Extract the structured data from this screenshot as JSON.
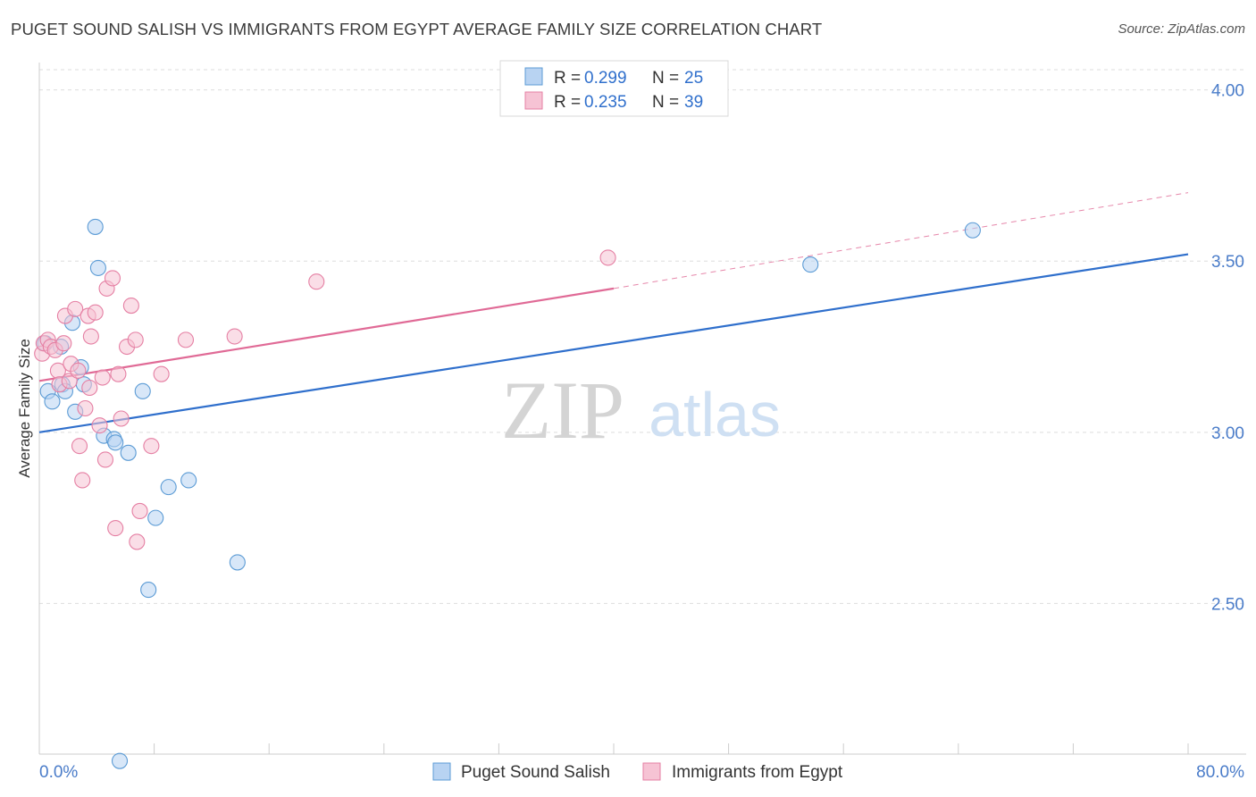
{
  "title": "PUGET SOUND SALISH VS IMMIGRANTS FROM EGYPT AVERAGE FAMILY SIZE CORRELATION CHART",
  "source": "Source: ZipAtlas.com",
  "watermark": {
    "zip": "ZIP",
    "atlas": "atlas"
  },
  "colors": {
    "blue": "#5b9bd5",
    "blue_fill": "#b8d3f2",
    "blue_line": "#2f6fcc",
    "pink": "#e57fa3",
    "pink_fill": "#f6c3d4",
    "pink_line": "#e06a96",
    "axis_text": "#4a7cc9",
    "grid": "#dddddd"
  },
  "chart_data": {
    "type": "scatter",
    "xlabel": "",
    "ylabel": "Average Family Size",
    "xlim": [
      0,
      80
    ],
    "ylim": [
      2.06,
      4.08
    ],
    "x_tick_labels": [
      "0.0%",
      "80.0%"
    ],
    "y_ticks": [
      2.5,
      3.0,
      3.5,
      4.0
    ],
    "y_tick_labels": [
      "2.50",
      "3.00",
      "3.50",
      "4.00"
    ],
    "legend_stats": [
      {
        "r_label": "R = ",
        "r": "0.299",
        "n_label": "N = ",
        "n": "25"
      },
      {
        "r_label": "R = ",
        "r": "0.235",
        "n_label": "N = ",
        "n": "39"
      }
    ],
    "series": [
      {
        "name": "Puget Sound Salish",
        "color": "blue",
        "points": [
          [
            0.4,
            3.26
          ],
          [
            0.6,
            3.12
          ],
          [
            0.9,
            3.09
          ],
          [
            1.5,
            3.25
          ],
          [
            1.6,
            3.14
          ],
          [
            1.8,
            3.12
          ],
          [
            2.3,
            3.32
          ],
          [
            2.5,
            3.06
          ],
          [
            2.9,
            3.19
          ],
          [
            3.1,
            3.14
          ],
          [
            3.9,
            3.6
          ],
          [
            4.1,
            3.48
          ],
          [
            4.5,
            2.99
          ],
          [
            5.2,
            2.98
          ],
          [
            5.3,
            2.97
          ],
          [
            5.6,
            2.04
          ],
          [
            6.2,
            2.94
          ],
          [
            7.2,
            3.12
          ],
          [
            7.6,
            2.54
          ],
          [
            8.1,
            2.75
          ],
          [
            9.0,
            2.84
          ],
          [
            10.4,
            2.86
          ],
          [
            13.8,
            2.62
          ],
          [
            53.7,
            3.49
          ],
          [
            65.0,
            3.59
          ]
        ],
        "trend": {
          "x": [
            0,
            80
          ],
          "y": [
            3.0,
            3.52
          ]
        }
      },
      {
        "name": "Immigrants from Egypt",
        "color": "pink",
        "points": [
          [
            0.2,
            3.23
          ],
          [
            0.3,
            3.26
          ],
          [
            0.6,
            3.27
          ],
          [
            0.8,
            3.25
          ],
          [
            1.1,
            3.24
          ],
          [
            1.3,
            3.18
          ],
          [
            1.4,
            3.14
          ],
          [
            1.7,
            3.26
          ],
          [
            1.8,
            3.34
          ],
          [
            2.1,
            3.15
          ],
          [
            2.2,
            3.2
          ],
          [
            2.5,
            3.36
          ],
          [
            2.7,
            3.18
          ],
          [
            2.8,
            2.96
          ],
          [
            3.0,
            2.86
          ],
          [
            3.2,
            3.07
          ],
          [
            3.4,
            3.34
          ],
          [
            3.5,
            3.13
          ],
          [
            3.6,
            3.28
          ],
          [
            3.9,
            3.35
          ],
          [
            4.2,
            3.02
          ],
          [
            4.4,
            3.16
          ],
          [
            4.6,
            2.92
          ],
          [
            4.7,
            3.42
          ],
          [
            5.1,
            3.45
          ],
          [
            5.3,
            2.72
          ],
          [
            5.5,
            3.17
          ],
          [
            5.7,
            3.04
          ],
          [
            6.1,
            3.25
          ],
          [
            6.4,
            3.37
          ],
          [
            6.7,
            3.27
          ],
          [
            6.8,
            2.68
          ],
          [
            7.0,
            2.77
          ],
          [
            7.8,
            2.96
          ],
          [
            8.5,
            3.17
          ],
          [
            10.2,
            3.27
          ],
          [
            13.6,
            3.28
          ],
          [
            19.3,
            3.44
          ],
          [
            39.6,
            3.51
          ]
        ],
        "trend": {
          "x": [
            0,
            40
          ],
          "y": [
            3.15,
            3.42
          ]
        },
        "trend_dashed": {
          "x": [
            40,
            80
          ],
          "y": [
            3.42,
            3.7
          ]
        }
      }
    ]
  }
}
